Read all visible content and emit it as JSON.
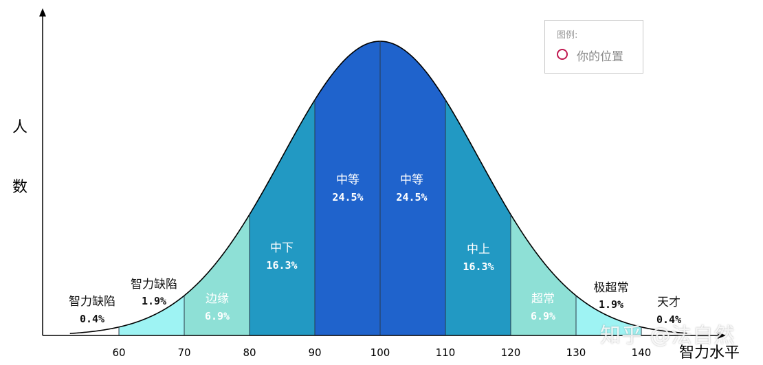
{
  "chart_data": {
    "type": "area",
    "xlabel": "智力水平",
    "ylabel": "人数",
    "x_ticks": [
      60,
      70,
      80,
      90,
      100,
      110,
      120,
      130,
      140
    ],
    "distribution": {
      "mean": 100,
      "sd": 15
    },
    "bands": [
      {
        "name": "智力缺陷",
        "percent": "0.4%",
        "from": 50,
        "to": 60,
        "color": "#ffffff"
      },
      {
        "name": "智力缺陷",
        "percent": "1.9%",
        "from": 60,
        "to": 70,
        "color": "#9ef3f3"
      },
      {
        "name": "边缘",
        "percent": "6.9%",
        "from": 70,
        "to": 80,
        "color": "#8ee0d6"
      },
      {
        "name": "中下",
        "percent": "16.3%",
        "from": 80,
        "to": 90,
        "color": "#2299c3"
      },
      {
        "name": "中等",
        "percent": "24.5%",
        "from": 90,
        "to": 100,
        "color": "#1f63cc"
      },
      {
        "name": "中等",
        "percent": "24.5%",
        "from": 100,
        "to": 110,
        "color": "#1f63cc"
      },
      {
        "name": "中上",
        "percent": "16.3%",
        "from": 110,
        "to": 120,
        "color": "#2299c3"
      },
      {
        "name": "超常",
        "percent": "6.9%",
        "from": 120,
        "to": 130,
        "color": "#8ee0d6"
      },
      {
        "name": "极超常",
        "percent": "1.9%",
        "from": 130,
        "to": 140,
        "color": "#9ef3f3"
      },
      {
        "name": "天才",
        "percent": "0.4%",
        "from": 140,
        "to": 150,
        "color": "#ffffff"
      }
    ],
    "legend": {
      "title": "图例:",
      "items": [
        {
          "label": "你的位置",
          "marker_color": "#c0174f"
        }
      ],
      "position": "top-right"
    }
  },
  "watermark": "知乎 @法自然"
}
